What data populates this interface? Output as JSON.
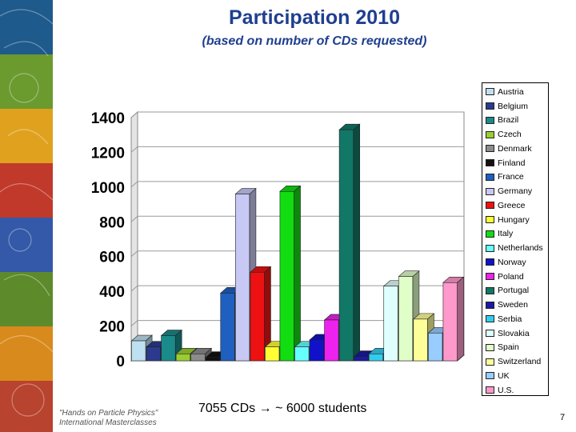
{
  "slide": {
    "title": "Participation 2010",
    "subtitle": "(based on number of CDs requested)",
    "note_count": "7055 CDs",
    "note_arrow": "→",
    "note_students": "~ 6000 students",
    "footer_line1": "\"Hands on Particle Physics\"",
    "footer_line2": "International Masterclasses",
    "page_number": "7"
  },
  "chart_data": {
    "type": "bar",
    "title": "",
    "xlabel": "",
    "ylabel": "",
    "ylim": [
      0,
      1400
    ],
    "yticks": [
      0,
      200,
      400,
      600,
      800,
      1000,
      1200,
      1400
    ],
    "ytick_labels": [
      "0",
      "200",
      "400",
      "600",
      "800",
      "1000",
      "1200",
      "1400"
    ],
    "grid": true,
    "legend_position": "right",
    "style": "3d-column",
    "series": [
      {
        "name": "Austria",
        "value": 115,
        "color": "#bfe0f0"
      },
      {
        "name": "Belgium",
        "value": 80,
        "color": "#2b3a8c"
      },
      {
        "name": "Brazil",
        "value": 145,
        "color": "#1a8a8a"
      },
      {
        "name": "Czech",
        "value": 40,
        "color": "#9acd32"
      },
      {
        "name": "Denmark",
        "value": 40,
        "color": "#8c8c8c"
      },
      {
        "name": "Finland",
        "value": 20,
        "color": "#111111"
      },
      {
        "name": "France",
        "value": 390,
        "color": "#1f5fbf"
      },
      {
        "name": "Germany",
        "value": 960,
        "color": "#c8c8f4"
      },
      {
        "name": "Greece",
        "value": 510,
        "color": "#ee1111"
      },
      {
        "name": "Hungary",
        "value": 80,
        "color": "#ffff33"
      },
      {
        "name": "Italy",
        "value": 975,
        "color": "#11dd11"
      },
      {
        "name": "Netherlands",
        "value": 80,
        "color": "#66ffff"
      },
      {
        "name": "Norway",
        "value": 120,
        "color": "#1111cc"
      },
      {
        "name": "Poland",
        "value": 235,
        "color": "#ee22ee"
      },
      {
        "name": "Portugal",
        "value": 1330,
        "color": "#117766"
      },
      {
        "name": "Sweden",
        "value": 25,
        "color": "#1a1aa0"
      },
      {
        "name": "Serbia",
        "value": 40,
        "color": "#33ccee"
      },
      {
        "name": "Slovakia",
        "value": 430,
        "color": "#dfffff"
      },
      {
        "name": "Spain",
        "value": 485,
        "color": "#e0ffc8"
      },
      {
        "name": "Switzerland",
        "value": 240,
        "color": "#ffff99"
      },
      {
        "name": "UK",
        "value": 160,
        "color": "#99ccff"
      },
      {
        "name": "U.S.",
        "value": 450,
        "color": "#ff99cc"
      }
    ]
  }
}
